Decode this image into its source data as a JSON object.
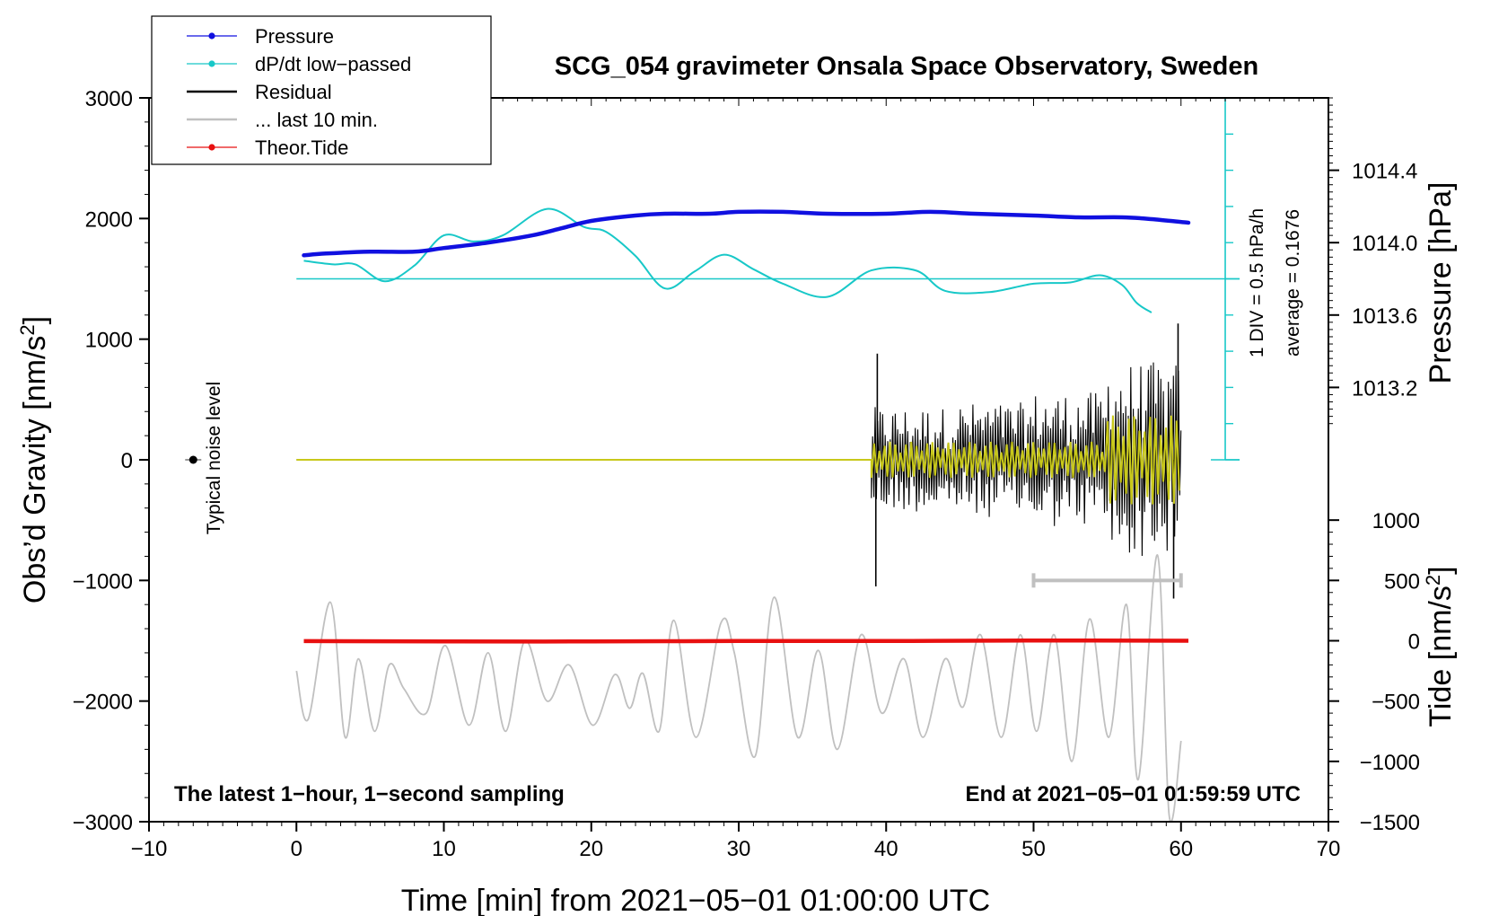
{
  "chart_data": {
    "type": "line",
    "title": "SCG_054 gravimeter Onsala Space Observatory, Sweden",
    "xlabel": "Time [min] from 2021−05−01 01:00:00 UTC",
    "ylabel_left": "Obs’d Gravity [nm/s",
    "ylabel_left_sup": "2",
    "ylabel_left_end": "]",
    "ylabel_right_pressure": "Pressure [hPa]",
    "ylabel_right_tide": "Tide [nm/s",
    "ylabel_right_tide_sup": "2",
    "ylabel_right_tide_end": "]",
    "xlim": [
      -10,
      70
    ],
    "ylim_gravity": [
      -3000,
      3000
    ],
    "xticks": [
      {
        "v": -10,
        "label": "−10"
      },
      {
        "v": 0,
        "label": "0"
      },
      {
        "v": 10,
        "label": "10"
      },
      {
        "v": 20,
        "label": "20"
      },
      {
        "v": 30,
        "label": "30"
      },
      {
        "v": 40,
        "label": "40"
      },
      {
        "v": 50,
        "label": "50"
      },
      {
        "v": 60,
        "label": "60"
      },
      {
        "v": 70,
        "label": "70"
      }
    ],
    "yticks_gravity": [
      {
        "v": 3000,
        "label": "3000"
      },
      {
        "v": 2000,
        "label": "2000"
      },
      {
        "v": 1000,
        "label": "1000"
      },
      {
        "v": 0,
        "label": "0"
      },
      {
        "v": -1000,
        "label": "−1000"
      },
      {
        "v": -2000,
        "label": "−2000"
      },
      {
        "v": -3000,
        "label": "−3000"
      }
    ],
    "pressure_axis": {
      "ref_gravity": 1500,
      "ref_hpa": 1013.8,
      "gravity_per_hpa": 1500,
      "ticks": [
        {
          "v": 1014.4,
          "label": "1014.4"
        },
        {
          "v": 1014.0,
          "label": "1014.0"
        },
        {
          "v": 1013.6,
          "label": "1013.6"
        },
        {
          "v": 1013.2,
          "label": "1013.2"
        }
      ]
    },
    "tide_axis": {
      "ref_gravity": -1500,
      "gravity_per_unit": 1,
      "ticks": [
        {
          "v": 1000,
          "label": "1000"
        },
        {
          "v": 500,
          "label": "500"
        },
        {
          "v": 0,
          "label": "0"
        },
        {
          "v": -500,
          "label": "−500"
        },
        {
          "v": -1000,
          "label": "−1000"
        },
        {
          "v": -1500,
          "label": "−1500"
        }
      ]
    },
    "dpdt_scale": {
      "label": "1 DIV = 0.5 hPa/h",
      "average_label": "average = 0.1676",
      "x": 63,
      "y_from": 0,
      "y_to": 3000,
      "major_every": 1500,
      "minor_every": 300,
      "average_level": 1500
    },
    "noise": {
      "label": "Typical noise level",
      "x": -7,
      "y": 0
    },
    "legend": [
      {
        "label": "Pressure",
        "color": "#1010e0",
        "marker": true
      },
      {
        "label": "dP/dt low−passed",
        "color": "#18c8c8",
        "marker": true
      },
      {
        "label": "Residual",
        "color": "#000000",
        "marker": false
      },
      {
        "label": "... last 10 min.",
        "color": "#c0c0c0",
        "marker": false
      },
      {
        "label": "Theor.Tide",
        "color": "#e81010",
        "marker": true
      }
    ],
    "annotation_left": "The latest 1−hour, 1−second sampling",
    "annotation_right": "End at 2021−05−01 01:59:59 UTC",
    "last10_bar": {
      "x_from": 50,
      "x_to": 60,
      "y": -1000
    },
    "series": [
      {
        "name": "Pressure",
        "color": "#1010e0",
        "unit": "hPa",
        "x": [
          0.5,
          2,
          5,
          8,
          10,
          13,
          16,
          18,
          20,
          23,
          25,
          28,
          30,
          33,
          36,
          40,
          43,
          46,
          50,
          53,
          56,
          58,
          60.5
        ],
        "values": [
          1013.93,
          1013.94,
          1013.95,
          1013.95,
          1013.97,
          1014.0,
          1014.04,
          1014.08,
          1014.12,
          1014.15,
          1014.16,
          1014.16,
          1014.17,
          1014.17,
          1014.16,
          1014.16,
          1014.17,
          1014.16,
          1014.15,
          1014.14,
          1014.14,
          1014.13,
          1014.11
        ]
      },
      {
        "name": "dP/dt low-passed",
        "color": "#18c8c8",
        "unit": "nm/s2 (plot)",
        "x": [
          0.5,
          2.5,
          4,
          6,
          8,
          10,
          12,
          14,
          17,
          19.5,
          21,
          23,
          25,
          27,
          29,
          31,
          33,
          36,
          39,
          42,
          44,
          47,
          50,
          52.5,
          54.5,
          56,
          57,
          58
        ],
        "values": [
          1650,
          1620,
          1620,
          1480,
          1610,
          1860,
          1810,
          1860,
          2080,
          1930,
          1890,
          1690,
          1420,
          1560,
          1700,
          1580,
          1460,
          1350,
          1570,
          1570,
          1400,
          1390,
          1460,
          1470,
          1530,
          1450,
          1300,
          1220
        ]
      },
      {
        "name": "Residual",
        "color": "#000000",
        "unit": "nm/s2",
        "quiet_until": 39,
        "segments": [
          {
            "x_from": 39,
            "x_to": 45,
            "amplitude": 350
          },
          {
            "x_from": 45,
            "x_to": 50,
            "amplitude": 380
          },
          {
            "x_from": 50,
            "x_to": 55,
            "amplitude": 450
          },
          {
            "x_from": 55,
            "x_to": 60,
            "amplitude": 650
          }
        ],
        "spikes": [
          {
            "x": 39.3,
            "y": -1050
          },
          {
            "x": 39.4,
            "y": 880
          },
          {
            "x": 59.5,
            "y": -1150
          },
          {
            "x": 59.8,
            "y": 1130
          }
        ]
      },
      {
        "name": "Residual (smoothed)",
        "color": "#c8c81a",
        "unit": "nm/s2",
        "quiet_until": 39,
        "segments": [
          {
            "x_from": 39,
            "x_to": 55,
            "amplitude": 150
          },
          {
            "x_from": 55,
            "x_to": 60,
            "amplitude": 370
          }
        ]
      },
      {
        "name": "... last 10 min.",
        "color": "#c0c0c0",
        "unit": "nm/s2 (plot)",
        "x": [
          0,
          0.8,
          2.3,
          3.3,
          4.2,
          5.3,
          6.3,
          7.3,
          8.8,
          10.1,
          11.7,
          13,
          14.2,
          15.5,
          17,
          18.5,
          20.1,
          21.6,
          22.6,
          23.5,
          24.6,
          25.6,
          27.1,
          28.8,
          29.7,
          31.1,
          32.4,
          34,
          35.4,
          36.7,
          38.3,
          39.7,
          41.2,
          42.5,
          44,
          45.2,
          46.4,
          47.8,
          49.1,
          50.2,
          51.4,
          52.6,
          53.8,
          55.1,
          56.3,
          57.1,
          58.4,
          59.2,
          60
        ],
        "values": [
          -1750,
          -2150,
          -1180,
          -2300,
          -1650,
          -2250,
          -1700,
          -1900,
          -2100,
          -1540,
          -2200,
          -1600,
          -2250,
          -1500,
          -2000,
          -1700,
          -2200,
          -1780,
          -2060,
          -1770,
          -2250,
          -1330,
          -2300,
          -1350,
          -1600,
          -2460,
          -1140,
          -2300,
          -1580,
          -2400,
          -1450,
          -2100,
          -1650,
          -2300,
          -1650,
          -2050,
          -1450,
          -2300,
          -1450,
          -2250,
          -1450,
          -2500,
          -1320,
          -2300,
          -1200,
          -2650,
          -790,
          -2950,
          -2330
        ]
      },
      {
        "name": "Theor.Tide",
        "color": "#e81010",
        "unit": "nm/s2 (tide axis)",
        "x": [
          0.5,
          10,
          20,
          30,
          40,
          50,
          60.5
        ],
        "values": [
          -3,
          -5,
          -6,
          -2,
          -2,
          2,
          0
        ]
      }
    ]
  }
}
